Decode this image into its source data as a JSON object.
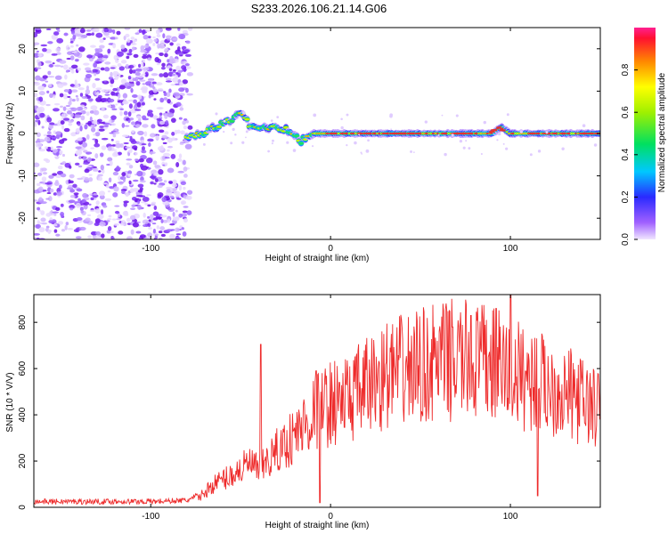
{
  "title": "S233.2026.106.21.14.G06",
  "colors": {
    "snr_line": "#ee2b2b",
    "ridge_core": "#e3322f"
  },
  "chart_data": [
    {
      "type": "heatmap",
      "title": "S233.2026.106.21.14.G06",
      "xlabel": "Height of straight line (km)",
      "ylabel": "Frequency (Hz)",
      "xlim": [
        -165,
        150
      ],
      "ylim": [
        -25,
        25
      ],
      "xticks": [
        -100,
        0,
        100
      ],
      "yticks": [
        -20,
        -10,
        0,
        10,
        20
      ],
      "xtick_labels": [
        "-100",
        "0",
        "100"
      ],
      "ytick_labels": [
        "-20",
        "-10",
        "0",
        "10",
        "20"
      ],
      "colorbar": {
        "label": "Normalized spectral amplitude",
        "range": [
          0,
          1
        ],
        "ticks": [
          0.0,
          0.2,
          0.4,
          0.6,
          0.8
        ],
        "tick_labels": [
          "0.0",
          "0.2",
          "0.4",
          "0.6",
          "0.8"
        ]
      },
      "noise_region_x": [
        -165,
        -78
      ],
      "ridge": {
        "x": [
          -80,
          -70,
          -62,
          -55,
          -50,
          -45,
          -40,
          -35,
          -30,
          -25,
          -20,
          -17,
          -14,
          -10,
          -5,
          0,
          20,
          40,
          60,
          80,
          90,
          95,
          100,
          120,
          150
        ],
        "y": [
          -1,
          0,
          2,
          3,
          5,
          2,
          1,
          1.5,
          1.5,
          1,
          0,
          -2,
          -1,
          0,
          0,
          0,
          0,
          0,
          0,
          0,
          0,
          1.5,
          0,
          0,
          0
        ]
      }
    },
    {
      "type": "line",
      "xlabel": "Height of straight line (km)",
      "ylabel": "SNR (10 * V/V)",
      "xlim": [
        -165,
        150
      ],
      "ylim": [
        0,
        920
      ],
      "xticks": [
        -100,
        0,
        100
      ],
      "yticks": [
        0,
        200,
        400,
        600,
        800
      ],
      "xtick_labels": [
        "-100",
        "0",
        "100"
      ],
      "ytick_labels": [
        "0",
        "200",
        "400",
        "600",
        "800"
      ],
      "series": [
        {
          "name": "SNR",
          "trend_x": [
            -165,
            -100,
            -80,
            -72,
            -65,
            -55,
            -45,
            -40,
            -30,
            -20,
            -10,
            0,
            10,
            20,
            30,
            50,
            70,
            90,
            100,
            110,
            120,
            130,
            140,
            150
          ],
          "trend_y": [
            25,
            25,
            30,
            50,
            100,
            140,
            190,
            160,
            240,
            310,
            400,
            450,
            470,
            520,
            570,
            610,
            640,
            620,
            580,
            560,
            530,
            500,
            460,
            420
          ],
          "spikes": [
            {
              "x": -39,
              "y": 705
            },
            {
              "x": 100,
              "y": 920
            },
            {
              "x": 92,
              "y": 860
            },
            {
              "x": 78,
              "y": 830
            },
            {
              "x": -8,
              "y": 590
            },
            {
              "x": 115,
              "y": 50
            },
            {
              "x": -6,
              "y": 20
            },
            {
              "x": 68,
              "y": 780
            },
            {
              "x": 5,
              "y": 540
            }
          ]
        }
      ]
    }
  ]
}
